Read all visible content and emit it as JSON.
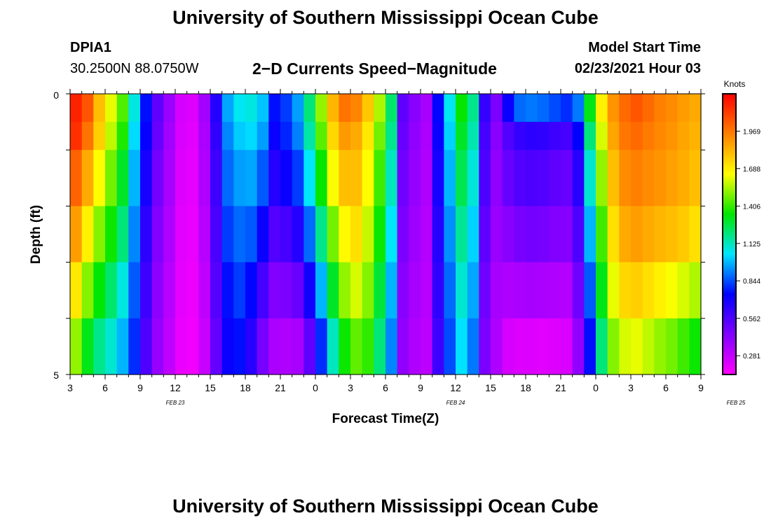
{
  "page": {
    "title": "University of Southern Mississippi Ocean Cube",
    "footer_title": "University of Southern Mississippi Ocean Cube",
    "station": "DPIA1",
    "coords": "30.2500N 88.0750W",
    "plot_title": "2−D Currents Speed−Magnitude",
    "model_start_label": "Model Start Time",
    "model_start_value": "02/23/2021 Hour 03"
  },
  "chart_data": {
    "type": "heatmap",
    "title": "2−D Currents Speed−Magnitude",
    "xlabel": "Forecast Time(Z)",
    "ylabel": "Depth (ft)",
    "colorbar_label": "Knots",
    "colorbar_ticks": [
      "0.281",
      "0.562",
      "0.844",
      "1.125",
      "1.406",
      "1.688",
      "1.969"
    ],
    "colorbar_range": [
      0.14,
      2.25
    ],
    "colormap": [
      "#ff00ff",
      "#8000ff",
      "#0000ff",
      "#00e6ff",
      "#00e600",
      "#ffff00",
      "#ff8000",
      "#ff0000"
    ],
    "x_start_hour": 3,
    "x_hours": 54,
    "x_tick_labels": [
      "3",
      "6",
      "9",
      "12",
      "15",
      "18",
      "21",
      "0",
      "3",
      "6",
      "9",
      "12",
      "15",
      "18",
      "21",
      "0",
      "3",
      "6",
      "9"
    ],
    "date_labels": [
      {
        "text": "FEB 23",
        "hour": 12
      },
      {
        "text": "FEB 24",
        "hour": 36
      },
      {
        "text": "FEB 25",
        "hour": 60
      }
    ],
    "y_tick_labels": [
      "0",
      "5"
    ],
    "ylim": [
      0,
      5
    ],
    "depth_levels": 5,
    "speed_grid_knots": [
      [
        2.17,
        2.05,
        1.8,
        1.62,
        1.44,
        1.08,
        0.76,
        0.52,
        0.38,
        0.24,
        0.22,
        0.36,
        0.66,
        0.96,
        1.06,
        1.08,
        1.0,
        0.76,
        0.82,
        0.95,
        1.2,
        1.52,
        1.82,
        1.98,
        1.94,
        1.78,
        1.55,
        1.22,
        0.52,
        0.42,
        0.35,
        0.75,
        1.06,
        1.35,
        1.18,
        0.62,
        0.45,
        0.72,
        0.88,
        0.9,
        0.88,
        0.84,
        0.8,
        0.9,
        1.32,
        1.68,
        1.9,
        2.0,
        2.05,
        2.0,
        1.95,
        1.92,
        1.88,
        1.85
      ],
      [
        2.14,
        1.98,
        1.76,
        1.57,
        1.38,
        1.03,
        0.73,
        0.5,
        0.36,
        0.23,
        0.21,
        0.34,
        0.63,
        0.92,
        1.01,
        1.03,
        0.95,
        0.72,
        0.79,
        0.91,
        1.15,
        1.45,
        1.74,
        1.89,
        1.85,
        1.7,
        1.48,
        1.18,
        0.5,
        0.4,
        0.34,
        0.72,
        1.02,
        1.3,
        1.14,
        0.58,
        0.42,
        0.55,
        0.62,
        0.64,
        0.63,
        0.6,
        0.58,
        0.74,
        1.2,
        1.6,
        1.86,
        1.97,
        2.0,
        1.96,
        1.93,
        1.9,
        1.86,
        1.83
      ],
      [
        2.02,
        1.85,
        1.65,
        1.48,
        1.3,
        0.98,
        0.69,
        0.47,
        0.35,
        0.22,
        0.2,
        0.33,
        0.6,
        0.88,
        0.95,
        0.96,
        0.86,
        0.66,
        0.72,
        0.82,
        1.05,
        1.35,
        1.64,
        1.8,
        1.8,
        1.65,
        1.42,
        1.12,
        0.48,
        0.39,
        0.33,
        0.69,
        0.98,
        1.25,
        1.09,
        0.56,
        0.4,
        0.5,
        0.55,
        0.56,
        0.55,
        0.52,
        0.5,
        0.65,
        1.1,
        1.52,
        1.8,
        1.92,
        1.95,
        1.92,
        1.9,
        1.87,
        1.84,
        1.8
      ],
      [
        1.88,
        1.68,
        1.5,
        1.36,
        1.2,
        0.92,
        0.64,
        0.44,
        0.33,
        0.21,
        0.19,
        0.31,
        0.57,
        0.82,
        0.88,
        0.86,
        0.72,
        0.55,
        0.58,
        0.66,
        0.88,
        1.18,
        1.48,
        1.66,
        1.72,
        1.58,
        1.36,
        1.05,
        0.45,
        0.37,
        0.32,
        0.66,
        0.93,
        1.17,
        1.02,
        0.52,
        0.38,
        0.42,
        0.46,
        0.47,
        0.46,
        0.44,
        0.43,
        0.56,
        0.98,
        1.42,
        1.72,
        1.85,
        1.88,
        1.85,
        1.82,
        1.8,
        1.77,
        1.72
      ],
      [
        1.7,
        1.5,
        1.34,
        1.22,
        1.08,
        0.86,
        0.6,
        0.41,
        0.31,
        0.2,
        0.18,
        0.29,
        0.54,
        0.76,
        0.82,
        0.75,
        0.58,
        0.44,
        0.45,
        0.5,
        0.7,
        0.98,
        1.3,
        1.52,
        1.6,
        1.5,
        1.28,
        0.98,
        0.42,
        0.35,
        0.31,
        0.63,
        0.88,
        1.1,
        0.96,
        0.48,
        0.35,
        0.33,
        0.34,
        0.35,
        0.34,
        0.33,
        0.32,
        0.48,
        0.86,
        1.32,
        1.62,
        1.74,
        1.76,
        1.72,
        1.68,
        1.64,
        1.6,
        1.55
      ],
      [
        1.52,
        1.32,
        1.18,
        1.1,
        0.98,
        0.8,
        0.56,
        0.39,
        0.29,
        0.19,
        0.17,
        0.27,
        0.51,
        0.72,
        0.76,
        0.65,
        0.46,
        0.34,
        0.33,
        0.35,
        0.52,
        0.8,
        1.12,
        1.36,
        1.46,
        1.4,
        1.2,
        0.92,
        0.4,
        0.33,
        0.3,
        0.6,
        0.84,
        1.04,
        0.9,
        0.45,
        0.33,
        0.24,
        0.22,
        0.22,
        0.21,
        0.22,
        0.23,
        0.4,
        0.76,
        1.2,
        1.5,
        1.6,
        1.62,
        1.57,
        1.52,
        1.48,
        1.42,
        1.36
      ]
    ]
  }
}
